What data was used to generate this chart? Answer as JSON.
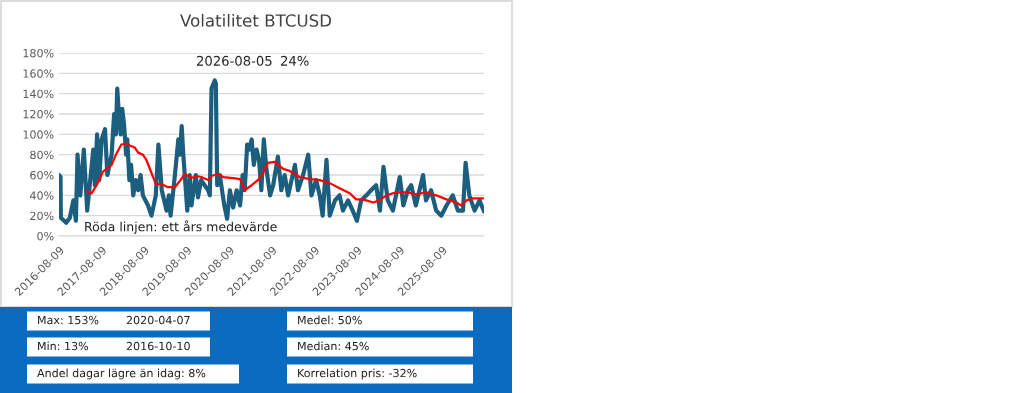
{
  "chart_data": {
    "type": "line",
    "title": "Volatilitet BTCUSD",
    "xlim": [
      "2016-08-09",
      "2026-08-05"
    ],
    "xticks": [
      "2016-08-09",
      "2017-08-09",
      "2018-08-09",
      "2019-08-09",
      "2020-08-09",
      "2021-08-09",
      "2022-08-09",
      "2023-08-09",
      "2024-08-09",
      "2025-08-09"
    ],
    "ylim": [
      0,
      180
    ],
    "yticks": [
      {
        "value": 0,
        "label": "0%"
      },
      {
        "value": 20,
        "label": "20%"
      },
      {
        "value": 40,
        "label": "40%"
      },
      {
        "value": 60,
        "label": "60%"
      },
      {
        "value": 80,
        "label": "80%"
      },
      {
        "value": 100,
        "label": "100%"
      },
      {
        "value": 120,
        "label": "120%"
      },
      {
        "value": 140,
        "label": "140%"
      },
      {
        "value": 160,
        "label": "160%"
      },
      {
        "value": 180,
        "label": "180%"
      }
    ],
    "grid": "y",
    "legend": false,
    "marker": "none",
    "line_style": "solid",
    "series": [
      {
        "color": "#1b5e7e",
        "x": [
          "2016-08-09",
          "2016-08-22",
          "2016-08-25",
          "2016-10-10",
          "2016-11-10",
          "2016-12-10",
          "2017-01-01",
          "2017-01-15",
          "2017-02-08",
          "2017-03-10",
          "2017-04-08",
          "2017-05-30",
          "2017-06-13",
          "2017-07-02",
          "2017-07-20",
          "2017-08-10",
          "2017-09-08",
          "2017-09-28",
          "2017-11-04",
          "2017-11-25",
          "2017-12-10",
          "2017-12-22",
          "2018-01-05",
          "2018-01-20",
          "2018-02-03",
          "2018-02-18",
          "2018-03-08",
          "2018-03-18",
          "2018-04-05",
          "2018-04-20",
          "2018-05-08",
          "2018-05-30",
          "2018-06-20",
          "2018-07-10",
          "2018-07-30",
          "2018-09-12",
          "2018-10-12",
          "2018-11-18",
          "2018-12-10",
          "2019-01-08",
          "2019-02-18",
          "2019-03-10",
          "2019-03-25",
          "2019-05-01",
          "2019-05-30",
          "2019-06-13",
          "2019-06-28",
          "2019-07-12",
          "2019-08-15",
          "2019-09-05",
          "2019-09-20",
          "2019-10-27",
          "2019-11-15",
          "2019-12-12",
          "2020-02-10",
          "2020-02-25",
          "2020-03-10",
          "2020-04-07",
          "2020-04-16",
          "2020-04-28",
          "2020-05-20",
          "2020-06-28",
          "2020-07-22",
          "2020-08-15",
          "2020-09-12",
          "2020-10-12",
          "2020-11-10",
          "2020-12-02",
          "2020-12-20",
          "2021-01-10",
          "2021-01-28",
          "2021-02-18",
          "2021-03-08",
          "2021-04-01",
          "2021-04-22",
          "2021-05-12",
          "2021-06-02",
          "2021-06-25",
          "2021-07-26",
          "2021-08-22",
          "2021-10-01",
          "2021-10-30",
          "2021-11-28",
          "2021-12-28",
          "2022-01-26",
          "2022-02-24",
          "2022-03-22",
          "2022-05-05",
          "2022-06-18",
          "2022-07-16",
          "2022-08-25",
          "2022-09-25",
          "2022-10-20",
          "2022-11-22",
          "2022-12-20",
          "2023-02-03",
          "2023-03-14",
          "2023-04-12",
          "2023-05-26",
          "2023-07-05",
          "2023-08-10",
          "2023-09-16",
          "2023-10-30",
          "2023-12-10",
          "2024-01-22",
          "2024-02-24",
          "2024-03-25",
          "2024-05-01",
          "2024-06-14",
          "2024-08-12",
          "2024-09-12",
          "2024-10-20",
          "2024-11-18",
          "2024-12-28",
          "2025-02-28",
          "2025-03-25",
          "2025-05-08",
          "2025-06-20",
          "2025-08-04",
          "2025-09-17",
          "2025-11-10",
          "2025-12-24",
          "2026-02-06",
          "2026-02-28",
          "2026-04-01",
          "2026-05-16",
          "2026-06-28",
          "2026-08-05"
        ],
        "values": [
          60,
          58,
          18,
          13,
          18,
          35,
          15,
          80,
          40,
          85,
          25,
          85,
          50,
          100,
          55,
          95,
          105,
          60,
          80,
          120,
          100,
          145,
          120,
          100,
          125,
          110,
          80,
          95,
          55,
          70,
          40,
          55,
          45,
          60,
          40,
          30,
          20,
          40,
          90,
          45,
          25,
          40,
          20,
          60,
          95,
          80,
          108,
          80,
          25,
          60,
          30,
          60,
          38,
          55,
          45,
          40,
          145,
          153,
          150,
          50,
          60,
          30,
          17,
          45,
          28,
          45,
          30,
          60,
          45,
          90,
          85,
          95,
          70,
          85,
          75,
          45,
          95,
          65,
          40,
          50,
          78,
          45,
          60,
          40,
          55,
          70,
          45,
          60,
          80,
          40,
          55,
          40,
          20,
          75,
          20,
          35,
          40,
          25,
          35,
          25,
          15,
          35,
          40,
          45,
          50,
          25,
          68,
          35,
          25,
          58,
          30,
          45,
          50,
          30,
          60,
          35,
          45,
          25,
          20,
          30,
          40,
          25,
          25,
          72,
          40,
          25,
          35,
          24
        ]
      },
      {
        "color": "#ff0000",
        "x": [
          "2017-04-08",
          "2017-05-15",
          "2017-06-28",
          "2017-08-20",
          "2017-09-20",
          "2017-11-04",
          "2017-12-10",
          "2018-01-26",
          "2018-03-10",
          "2018-04-08",
          "2018-05-22",
          "2018-06-20",
          "2018-07-30",
          "2018-08-28",
          "2018-10-12",
          "2018-11-18",
          "2019-01-08",
          "2019-03-03",
          "2019-05-01",
          "2019-06-18",
          "2019-07-24",
          "2019-09-20",
          "2019-11-03",
          "2019-12-12",
          "2020-02-10",
          "2020-03-10",
          "2020-05-05",
          "2020-06-18",
          "2020-09-12",
          "2020-11-10",
          "2020-12-20",
          "2021-02-18",
          "2021-04-12",
          "2021-05-26",
          "2021-07-08",
          "2021-09-05",
          "2021-11-15",
          "2022-01-10",
          "2022-04-05",
          "2022-07-01",
          "2022-09-25",
          "2022-12-20",
          "2023-03-14",
          "2023-06-10",
          "2023-08-04",
          "2023-10-01",
          "2023-12-28",
          "2024-02-20",
          "2024-04-20",
          "2024-07-12",
          "2024-10-08",
          "2025-01-01",
          "2025-03-25",
          "2025-06-20",
          "2025-09-17",
          "2025-12-10",
          "2026-01-22",
          "2026-03-08",
          "2026-05-01",
          "2026-07-28"
        ],
        "values": [
          44,
          42,
          50,
          63,
          66,
          70,
          80,
          90,
          91,
          89,
          87,
          82,
          80,
          75,
          62,
          51,
          51,
          48,
          48,
          55,
          61,
          57,
          59,
          58,
          55,
          59,
          61,
          58,
          57,
          56,
          45,
          50,
          55,
          62,
          72,
          73,
          66,
          64,
          58,
          56,
          55,
          52,
          47,
          42,
          36,
          36,
          33,
          35,
          40,
          43,
          43,
          41,
          43,
          40,
          36,
          33,
          30,
          35,
          37,
          37
        ]
      }
    ],
    "annotations": [
      "2026-08-05",
      "24%",
      "Röda linjen: ett års medevärde",
      "Max: 153%",
      "2020-04-07",
      "Min: 13%",
      "2016-10-10",
      "Andel dagar lägre än idag: 8%",
      "Medel: 50%",
      "Median: 45%",
      "Korrelation pris: -32%"
    ]
  }
}
